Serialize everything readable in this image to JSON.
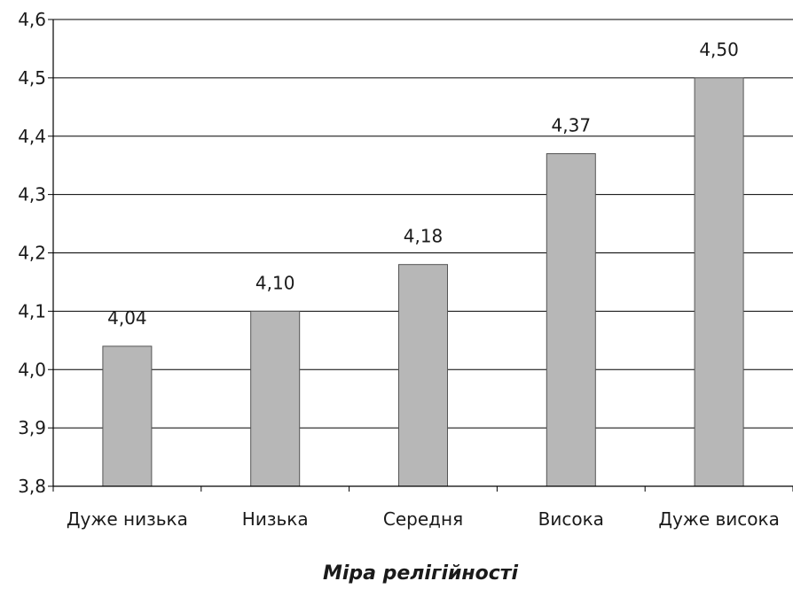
{
  "chart_data": {
    "type": "bar",
    "categories": [
      "Дуже низька",
      "Низька",
      "Середня",
      "Висока",
      "Дуже висока"
    ],
    "values": [
      4.04,
      4.1,
      4.18,
      4.37,
      4.5
    ],
    "value_labels": [
      "4,04",
      "4,10",
      "4,18",
      "4,37",
      "4,50"
    ],
    "title": "",
    "xlabel": "Міра релігійності",
    "ylabel": "",
    "ylim": [
      3.8,
      4.6
    ],
    "yticks": [
      3.8,
      3.9,
      4.0,
      4.1,
      4.2,
      4.3,
      4.4,
      4.5,
      4.6
    ],
    "ytick_labels": [
      "3,8",
      "3,9",
      "4,0",
      "4,1",
      "4,2",
      "4,3",
      "4,4",
      "4,5",
      "4,6"
    ],
    "grid": true,
    "legend": "none",
    "colors": {
      "bar_fill": "#b7b7b7",
      "bar_stroke": "#555555",
      "grid": "#000000",
      "axis": "#000000"
    }
  }
}
